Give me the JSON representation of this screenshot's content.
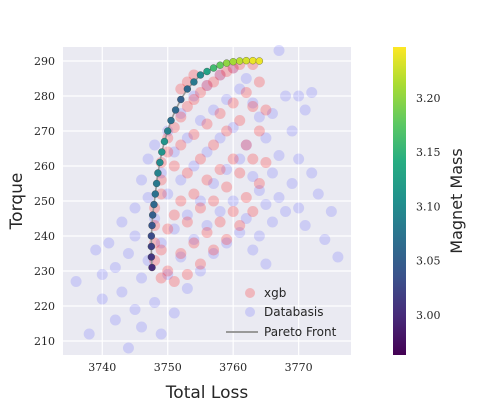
{
  "chart_data": {
    "type": "scatter",
    "xlabel": "Total Loss",
    "ylabel": "Torque",
    "xlim": [
      3734,
      3778
    ],
    "ylim": [
      206,
      294
    ],
    "xticks": [
      3740,
      3750,
      3760,
      3770
    ],
    "yticks": [
      210,
      220,
      230,
      240,
      250,
      260,
      270,
      280,
      290
    ],
    "grid": true,
    "legend": {
      "placement": "lower-right",
      "entries": [
        {
          "label": "xgb",
          "marker": "point"
        },
        {
          "label": "Databasis",
          "marker": "point"
        },
        {
          "label": "Pareto Front",
          "marker": "line"
        }
      ]
    },
    "colorbar": {
      "label": "Magnet Mass",
      "range": [
        2.963,
        3.247
      ],
      "ticks": [
        3.0,
        3.05,
        3.1,
        3.15,
        3.2
      ],
      "colormap": "viridis"
    },
    "series": [
      {
        "name": "Databasis",
        "color": "#4a4aff",
        "opacity": 0.18,
        "points": [
          [
            3736,
            227
          ],
          [
            3738,
            212
          ],
          [
            3739,
            236
          ],
          [
            3740,
            222
          ],
          [
            3740,
            229
          ],
          [
            3741,
            238
          ],
          [
            3742,
            216
          ],
          [
            3742,
            231
          ],
          [
            3743,
            244
          ],
          [
            3743,
            224
          ],
          [
            3744,
            208
          ],
          [
            3744,
            235
          ],
          [
            3745,
            248
          ],
          [
            3745,
            219
          ],
          [
            3745,
            240
          ],
          [
            3746,
            256
          ],
          [
            3746,
            228
          ],
          [
            3746,
            214
          ],
          [
            3747,
            262
          ],
          [
            3747,
            251
          ],
          [
            3747,
            233
          ],
          [
            3748,
            266
          ],
          [
            3748,
            245
          ],
          [
            3748,
            221
          ],
          [
            3749,
            258
          ],
          [
            3749,
            238
          ],
          [
            3749,
            212
          ],
          [
            3750,
            270
          ],
          [
            3750,
            252
          ],
          [
            3750,
            229
          ],
          [
            3751,
            264
          ],
          [
            3751,
            242
          ],
          [
            3751,
            218
          ],
          [
            3752,
            275
          ],
          [
            3752,
            256
          ],
          [
            3752,
            234
          ],
          [
            3753,
            268
          ],
          [
            3753,
            246
          ],
          [
            3753,
            225
          ],
          [
            3754,
            280
          ],
          [
            3754,
            260
          ],
          [
            3754,
            239
          ],
          [
            3755,
            273
          ],
          [
            3755,
            250
          ],
          [
            3755,
            230
          ],
          [
            3756,
            283
          ],
          [
            3756,
            264
          ],
          [
            3756,
            243
          ],
          [
            3757,
            276
          ],
          [
            3757,
            255
          ],
          [
            3757,
            235
          ],
          [
            3758,
            286
          ],
          [
            3758,
            268
          ],
          [
            3758,
            247
          ],
          [
            3759,
            279
          ],
          [
            3759,
            259
          ],
          [
            3759,
            238
          ],
          [
            3760,
            288
          ],
          [
            3760,
            271
          ],
          [
            3760,
            250
          ],
          [
            3761,
            282
          ],
          [
            3761,
            262
          ],
          [
            3761,
            241
          ],
          [
            3762,
            285
          ],
          [
            3762,
            266
          ],
          [
            3762,
            245
          ],
          [
            3763,
            278
          ],
          [
            3763,
            257
          ],
          [
            3763,
            236
          ],
          [
            3764,
            274
          ],
          [
            3764,
            253
          ],
          [
            3764,
            240
          ],
          [
            3765,
            268
          ],
          [
            3765,
            249
          ],
          [
            3765,
            232
          ],
          [
            3766,
            275
          ],
          [
            3766,
            258
          ],
          [
            3766,
            244
          ],
          [
            3767,
            263
          ],
          [
            3767,
            251
          ],
          [
            3768,
            280
          ],
          [
            3768,
            247
          ],
          [
            3769,
            270
          ],
          [
            3769,
            255
          ],
          [
            3770,
            262
          ],
          [
            3770,
            248
          ],
          [
            3771,
            276
          ],
          [
            3771,
            243
          ],
          [
            3772,
            258
          ],
          [
            3773,
            252
          ],
          [
            3774,
            239
          ],
          [
            3775,
            247
          ],
          [
            3776,
            234
          ],
          [
            3767,
            293
          ],
          [
            3770,
            280
          ],
          [
            3772,
            281
          ]
        ]
      },
      {
        "name": "xgb",
        "color": "#ff2020",
        "opacity": 0.25,
        "points": [
          [
            3748,
            233
          ],
          [
            3748,
            238
          ],
          [
            3748,
            243
          ],
          [
            3748,
            248
          ],
          [
            3749,
            228
          ],
          [
            3749,
            236
          ],
          [
            3749,
            252
          ],
          [
            3749,
            256
          ],
          [
            3749,
            261
          ],
          [
            3750,
            230
          ],
          [
            3750,
            242
          ],
          [
            3750,
            264
          ],
          [
            3750,
            268
          ],
          [
            3751,
            227
          ],
          [
            3751,
            246
          ],
          [
            3751,
            260
          ],
          [
            3751,
            271
          ],
          [
            3752,
            235
          ],
          [
            3752,
            250
          ],
          [
            3752,
            266
          ],
          [
            3752,
            274
          ],
          [
            3753,
            229
          ],
          [
            3753,
            244
          ],
          [
            3753,
            258
          ],
          [
            3753,
            277
          ],
          [
            3754,
            238
          ],
          [
            3754,
            252
          ],
          [
            3754,
            269
          ],
          [
            3754,
            279
          ],
          [
            3755,
            232
          ],
          [
            3755,
            248
          ],
          [
            3755,
            262
          ],
          [
            3755,
            281
          ],
          [
            3756,
            241
          ],
          [
            3756,
            256
          ],
          [
            3756,
            272
          ],
          [
            3756,
            283
          ],
          [
            3757,
            236
          ],
          [
            3757,
            250
          ],
          [
            3757,
            266
          ],
          [
            3757,
            284
          ],
          [
            3758,
            244
          ],
          [
            3758,
            259
          ],
          [
            3758,
            275
          ],
          [
            3758,
            286
          ],
          [
            3759,
            239
          ],
          [
            3759,
            254
          ],
          [
            3759,
            270
          ],
          [
            3759,
            287
          ],
          [
            3760,
            247
          ],
          [
            3760,
            262
          ],
          [
            3760,
            278
          ],
          [
            3760,
            288
          ],
          [
            3761,
            243
          ],
          [
            3761,
            258
          ],
          [
            3761,
            273
          ],
          [
            3761,
            289
          ],
          [
            3762,
            251
          ],
          [
            3762,
            266
          ],
          [
            3762,
            281
          ],
          [
            3763,
            247
          ],
          [
            3763,
            262
          ],
          [
            3763,
            277
          ],
          [
            3763,
            289
          ],
          [
            3764,
            255
          ],
          [
            3764,
            270
          ],
          [
            3764,
            284
          ],
          [
            3765,
            261
          ],
          [
            3765,
            276
          ],
          [
            3752,
            282
          ],
          [
            3753,
            284
          ],
          [
            3754,
            286
          ]
        ]
      },
      {
        "name": "Pareto Front",
        "line_color": "#999999",
        "points": [
          [
            3747.6,
            231
          ],
          [
            3747.5,
            234
          ],
          [
            3747.5,
            237
          ],
          [
            3747.5,
            240
          ],
          [
            3747.6,
            243
          ],
          [
            3747.7,
            246
          ],
          [
            3747.9,
            249
          ],
          [
            3748.1,
            252
          ],
          [
            3748.3,
            255
          ],
          [
            3748.5,
            258
          ],
          [
            3748.8,
            261
          ],
          [
            3749.1,
            264
          ],
          [
            3749.5,
            267
          ],
          [
            3750.0,
            270
          ],
          [
            3750.5,
            273
          ],
          [
            3751.2,
            276
          ],
          [
            3752.0,
            279
          ],
          [
            3753.0,
            282
          ],
          [
            3754.0,
            284
          ],
          [
            3755.0,
            286
          ],
          [
            3756.0,
            287
          ],
          [
            3757.0,
            288
          ],
          [
            3758.0,
            288.8
          ],
          [
            3759.0,
            289.4
          ],
          [
            3760.0,
            289.8
          ],
          [
            3761.0,
            290.0
          ],
          [
            3762.0,
            290.1
          ],
          [
            3763.0,
            290.1
          ],
          [
            3764.0,
            290.0
          ]
        ],
        "magnet_mass": [
          3.0,
          3.01,
          3.02,
          3.03,
          3.04,
          3.05,
          3.06,
          3.07,
          3.08,
          3.09,
          3.1,
          3.11,
          3.11,
          3.09,
          3.07,
          3.06,
          3.05,
          3.06,
          3.08,
          3.1,
          3.13,
          3.16,
          3.18,
          3.2,
          3.21,
          3.22,
          3.23,
          3.24,
          3.24
        ]
      }
    ]
  }
}
